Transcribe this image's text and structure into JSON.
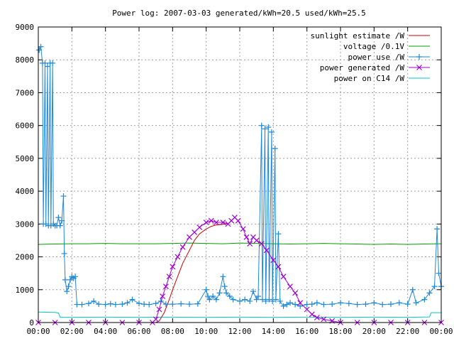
{
  "chart_data": {
    "type": "line",
    "title": "Power log: 2007-03-03 generated/kWh=20.5 used/kWh=25.5",
    "xlabel": "",
    "ylabel": "",
    "x_ticks": [
      "00:00",
      "02:00",
      "04:00",
      "06:00",
      "08:00",
      "10:00",
      "12:00",
      "14:00",
      "16:00",
      "18:00",
      "20:00",
      "22:00",
      "00:00"
    ],
    "xlim_hours": [
      0,
      24
    ],
    "ylim": [
      0,
      9000
    ],
    "y_ticks": [
      0,
      1000,
      2000,
      3000,
      4000,
      5000,
      6000,
      7000,
      8000,
      9000
    ],
    "grid": true,
    "legend_position": "top-right",
    "series": [
      {
        "name": "sunlight estimate /W",
        "color": "#cc0000",
        "style": "line",
        "points": [
          [
            0,
            0
          ],
          [
            7.0,
            0
          ],
          [
            7.2,
            50
          ],
          [
            7.5,
            300
          ],
          [
            7.8,
            700
          ],
          [
            8.0,
            1000
          ],
          [
            8.3,
            1400
          ],
          [
            8.6,
            1800
          ],
          [
            9.0,
            2200
          ],
          [
            9.3,
            2500
          ],
          [
            9.6,
            2700
          ],
          [
            10.0,
            2850
          ],
          [
            10.3,
            2930
          ],
          [
            10.6,
            2970
          ],
          [
            11.0,
            2990
          ],
          [
            11.2,
            3000
          ]
        ]
      },
      {
        "name": "voltage /0.1V",
        "color": "#00a000",
        "style": "line",
        "points": [
          [
            0,
            2380
          ],
          [
            1,
            2390
          ],
          [
            2,
            2400
          ],
          [
            3,
            2400
          ],
          [
            4,
            2410
          ],
          [
            5,
            2400
          ],
          [
            6,
            2400
          ],
          [
            7,
            2400
          ],
          [
            8,
            2410
          ],
          [
            9,
            2420
          ],
          [
            10,
            2410
          ],
          [
            11,
            2400
          ],
          [
            12,
            2420
          ],
          [
            13,
            2410
          ],
          [
            14,
            2400
          ],
          [
            15,
            2390
          ],
          [
            16,
            2400
          ],
          [
            17,
            2410
          ],
          [
            18,
            2400
          ],
          [
            19,
            2390
          ],
          [
            20,
            2380
          ],
          [
            21,
            2390
          ],
          [
            22,
            2380
          ],
          [
            23,
            2390
          ],
          [
            24,
            2400
          ]
        ]
      },
      {
        "name": "power use /W",
        "color": "#1e88d8",
        "style": "linepoints",
        "points": [
          [
            0.05,
            8300
          ],
          [
            0.15,
            8400
          ],
          [
            0.25,
            7900
          ],
          [
            0.3,
            3000
          ],
          [
            0.4,
            7900
          ],
          [
            0.45,
            3000
          ],
          [
            0.55,
            7800
          ],
          [
            0.6,
            2950
          ],
          [
            0.7,
            7900
          ],
          [
            0.75,
            2950
          ],
          [
            0.85,
            7900
          ],
          [
            0.9,
            3000
          ],
          [
            1.0,
            2950
          ],
          [
            1.1,
            2950
          ],
          [
            1.2,
            3200
          ],
          [
            1.3,
            2950
          ],
          [
            1.4,
            3100
          ],
          [
            1.5,
            3850
          ],
          [
            1.55,
            2100
          ],
          [
            1.6,
            1300
          ],
          [
            1.7,
            950
          ],
          [
            1.8,
            1100
          ],
          [
            1.9,
            1300
          ],
          [
            2.0,
            1400
          ],
          [
            2.1,
            1350
          ],
          [
            2.2,
            1400
          ],
          [
            2.3,
            550
          ],
          [
            2.6,
            550
          ],
          [
            3.0,
            580
          ],
          [
            3.3,
            650
          ],
          [
            3.6,
            560
          ],
          [
            4.0,
            550
          ],
          [
            4.3,
            570
          ],
          [
            4.6,
            550
          ],
          [
            5.0,
            560
          ],
          [
            5.3,
            600
          ],
          [
            5.6,
            700
          ],
          [
            6.0,
            580
          ],
          [
            6.3,
            560
          ],
          [
            6.6,
            550
          ],
          [
            7.0,
            580
          ],
          [
            7.3,
            650
          ],
          [
            7.6,
            560
          ],
          [
            8.0,
            560
          ],
          [
            8.5,
            570
          ],
          [
            9.0,
            560
          ],
          [
            9.5,
            570
          ],
          [
            10.0,
            1000
          ],
          [
            10.1,
            800
          ],
          [
            10.2,
            700
          ],
          [
            10.4,
            800
          ],
          [
            10.6,
            700
          ],
          [
            10.8,
            900
          ],
          [
            11.0,
            1400
          ],
          [
            11.1,
            1100
          ],
          [
            11.2,
            900
          ],
          [
            11.4,
            800
          ],
          [
            11.6,
            700
          ],
          [
            12.0,
            650
          ],
          [
            12.3,
            700
          ],
          [
            12.6,
            650
          ],
          [
            12.8,
            950
          ],
          [
            13.0,
            700
          ],
          [
            13.1,
            800
          ],
          [
            13.3,
            6000
          ],
          [
            13.35,
            700
          ],
          [
            13.5,
            5900
          ],
          [
            13.55,
            650
          ],
          [
            13.7,
            5950
          ],
          [
            13.75,
            700
          ],
          [
            13.9,
            5800
          ],
          [
            13.95,
            650
          ],
          [
            14.1,
            5300
          ],
          [
            14.15,
            700
          ],
          [
            14.3,
            2700
          ],
          [
            14.4,
            650
          ],
          [
            14.6,
            500
          ],
          [
            14.8,
            550
          ],
          [
            15.0,
            600
          ],
          [
            15.3,
            550
          ],
          [
            15.6,
            500
          ],
          [
            16.0,
            550
          ],
          [
            16.3,
            560
          ],
          [
            16.6,
            600
          ],
          [
            17.0,
            550
          ],
          [
            17.5,
            560
          ],
          [
            18.0,
            600
          ],
          [
            18.5,
            580
          ],
          [
            19.0,
            550
          ],
          [
            19.5,
            560
          ],
          [
            20.0,
            600
          ],
          [
            20.5,
            550
          ],
          [
            21.0,
            560
          ],
          [
            21.5,
            600
          ],
          [
            22.0,
            560
          ],
          [
            22.3,
            1000
          ],
          [
            22.5,
            600
          ],
          [
            23.0,
            700
          ],
          [
            23.3,
            900
          ],
          [
            23.6,
            1100
          ],
          [
            23.75,
            2850
          ],
          [
            23.85,
            1500
          ],
          [
            24.0,
            1100
          ]
        ]
      },
      {
        "name": "power generated /W",
        "color": "#a000d0",
        "style": "linepoints",
        "points": [
          [
            0,
            0
          ],
          [
            1,
            0
          ],
          [
            2,
            0
          ],
          [
            3,
            0
          ],
          [
            4,
            0
          ],
          [
            5,
            0
          ],
          [
            6,
            0
          ],
          [
            6.8,
            0
          ],
          [
            7.0,
            100
          ],
          [
            7.2,
            400
          ],
          [
            7.4,
            800
          ],
          [
            7.6,
            1100
          ],
          [
            7.8,
            1400
          ],
          [
            8.0,
            1700
          ],
          [
            8.3,
            2000
          ],
          [
            8.6,
            2300
          ],
          [
            9.0,
            2600
          ],
          [
            9.3,
            2750
          ],
          [
            9.6,
            2900
          ],
          [
            10.0,
            3050
          ],
          [
            10.3,
            3100
          ],
          [
            10.6,
            3050
          ],
          [
            11.0,
            3050
          ],
          [
            11.3,
            3000
          ],
          [
            11.5,
            3100
          ],
          [
            11.7,
            3200
          ],
          [
            11.9,
            3100
          ],
          [
            12.2,
            2850
          ],
          [
            12.4,
            2600
          ],
          [
            12.6,
            2400
          ],
          [
            12.8,
            2600
          ],
          [
            13.0,
            2500
          ],
          [
            13.3,
            2400
          ],
          [
            13.6,
            2200
          ],
          [
            14.0,
            1900
          ],
          [
            14.3,
            1700
          ],
          [
            14.6,
            1400
          ],
          [
            15.0,
            1100
          ],
          [
            15.3,
            900
          ],
          [
            15.6,
            600
          ],
          [
            16.0,
            400
          ],
          [
            16.3,
            250
          ],
          [
            16.6,
            150
          ],
          [
            17.0,
            100
          ],
          [
            17.5,
            50
          ],
          [
            18.0,
            0
          ],
          [
            19,
            0
          ],
          [
            20,
            0
          ],
          [
            21,
            0
          ],
          [
            22,
            0
          ],
          [
            23,
            0
          ],
          [
            24,
            0
          ]
        ]
      },
      {
        "name": "power on C14 /W",
        "color": "#00c8c8",
        "style": "line",
        "points": [
          [
            0,
            320
          ],
          [
            1.0,
            310
          ],
          [
            1.2,
            290
          ],
          [
            1.3,
            160
          ],
          [
            2,
            160
          ],
          [
            4,
            165
          ],
          [
            6,
            160
          ],
          [
            8,
            165
          ],
          [
            10,
            160
          ],
          [
            12,
            165
          ],
          [
            14,
            160
          ],
          [
            16,
            165
          ],
          [
            18,
            160
          ],
          [
            20,
            165
          ],
          [
            22,
            160
          ],
          [
            23.3,
            170
          ],
          [
            23.4,
            300
          ],
          [
            24,
            300
          ]
        ]
      }
    ]
  }
}
